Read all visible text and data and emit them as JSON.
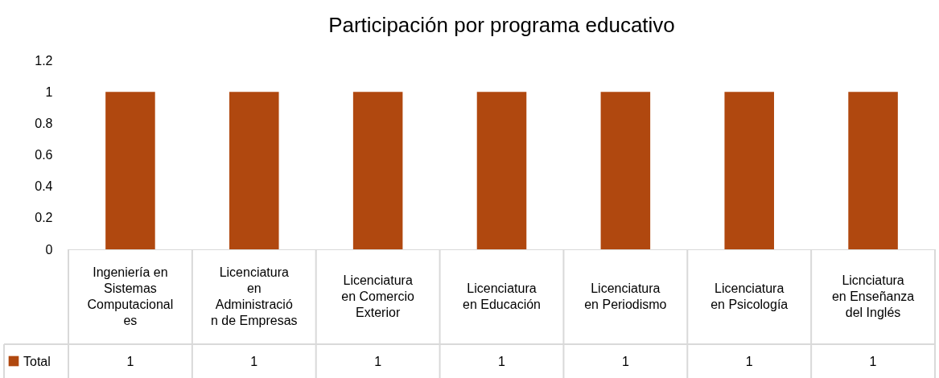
{
  "chart_data": {
    "type": "bar",
    "title": "Participación por programa educativo",
    "categories": [
      "Ingeniería en Sistemas Computacionales",
      "Licenciatura en Administración de Empresas",
      "Licenciatura en Comercio Exterior",
      "Licenciatura en Educación",
      "Licenciatura en Periodismo",
      "Licenciatura en Psicología",
      "Licnciatura en Enseñanza del Inglés"
    ],
    "series": [
      {
        "name": "Total",
        "color": "#b0480f",
        "values": [
          1,
          1,
          1,
          1,
          1,
          1,
          1
        ]
      }
    ],
    "ylim": [
      0,
      1.2
    ],
    "yticks": [
      0,
      0.2,
      0.4,
      0.6,
      0.8,
      1,
      1.2
    ],
    "grid": false,
    "data_labels": true
  }
}
